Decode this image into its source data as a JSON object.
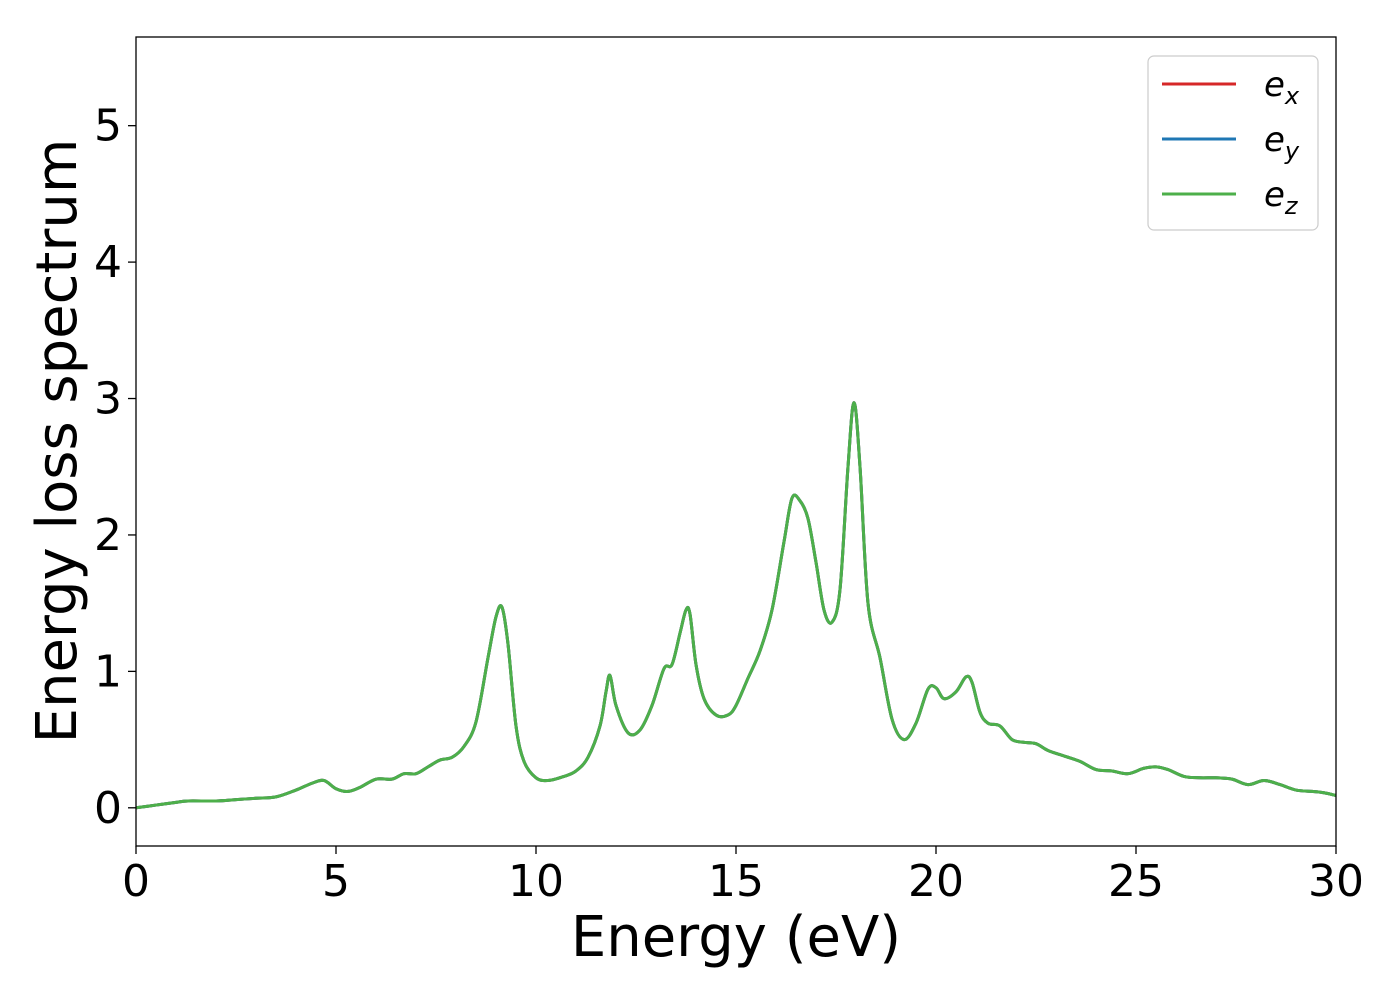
{
  "chart_data": {
    "type": "line",
    "xlabel": "Energy (eV)",
    "ylabel": "Energy loss spectrum",
    "xlim": [
      0,
      30
    ],
    "ylim": [
      -0.28,
      5.65
    ],
    "xticks": [
      0,
      5,
      10,
      15,
      20,
      25,
      30
    ],
    "yticks": [
      0,
      1,
      2,
      3,
      4,
      5
    ],
    "grid": false,
    "legend_position": "top-right",
    "legend": [
      {
        "base": "e",
        "sub": "x",
        "color": "#d62728"
      },
      {
        "base": "e",
        "sub": "y",
        "color": "#1f77b4"
      },
      {
        "base": "e",
        "sub": "z",
        "color": "#4daf4a"
      }
    ],
    "x": [
      0,
      0.5,
      1.0,
      1.3,
      2.0,
      2.5,
      3.0,
      3.5,
      4.0,
      4.4,
      4.7,
      5.0,
      5.3,
      5.6,
      6.0,
      6.4,
      6.7,
      7.0,
      7.3,
      7.6,
      7.9,
      8.2,
      8.5,
      8.8,
      9.0,
      9.15,
      9.3,
      9.5,
      9.7,
      10.0,
      10.3,
      10.7,
      11.0,
      11.3,
      11.6,
      11.75,
      11.85,
      12.0,
      12.3,
      12.6,
      12.9,
      13.2,
      13.4,
      13.6,
      13.75,
      13.85,
      14.0,
      14.2,
      14.5,
      14.8,
      15.0,
      15.3,
      15.6,
      15.9,
      16.2,
      16.4,
      16.6,
      16.8,
      17.0,
      17.2,
      17.4,
      17.6,
      17.8,
      17.95,
      18.1,
      18.3,
      18.6,
      18.9,
      19.2,
      19.5,
      19.8,
      20.0,
      20.2,
      20.5,
      20.75,
      20.9,
      21.1,
      21.3,
      21.6,
      21.9,
      22.2,
      22.5,
      22.8,
      23.2,
      23.6,
      24.0,
      24.4,
      24.8,
      25.2,
      25.5,
      25.8,
      26.2,
      26.6,
      27.0,
      27.4,
      27.8,
      28.2,
      28.6,
      29.0,
      29.4,
      29.7,
      30.0
    ],
    "series": [
      {
        "name": "e_x",
        "color": "#d62728",
        "values": [
          0.0,
          0.02,
          0.04,
          0.05,
          0.05,
          0.06,
          0.07,
          0.08,
          0.13,
          0.18,
          0.2,
          0.14,
          0.12,
          0.15,
          0.21,
          0.21,
          0.25,
          0.25,
          0.3,
          0.35,
          0.37,
          0.45,
          0.63,
          1.1,
          1.4,
          1.47,
          1.2,
          0.6,
          0.34,
          0.22,
          0.2,
          0.23,
          0.27,
          0.37,
          0.6,
          0.85,
          0.97,
          0.75,
          0.55,
          0.57,
          0.75,
          1.02,
          1.05,
          1.28,
          1.45,
          1.42,
          1.05,
          0.8,
          0.68,
          0.68,
          0.75,
          0.95,
          1.15,
          1.45,
          1.95,
          2.27,
          2.25,
          2.12,
          1.8,
          1.45,
          1.36,
          1.6,
          2.5,
          2.97,
          2.5,
          1.5,
          1.1,
          0.65,
          0.5,
          0.62,
          0.87,
          0.88,
          0.8,
          0.85,
          0.96,
          0.92,
          0.7,
          0.62,
          0.6,
          0.5,
          0.48,
          0.47,
          0.42,
          0.38,
          0.34,
          0.28,
          0.27,
          0.25,
          0.29,
          0.3,
          0.28,
          0.23,
          0.22,
          0.22,
          0.21,
          0.17,
          0.2,
          0.17,
          0.13,
          0.12,
          0.11,
          0.09
        ]
      },
      {
        "name": "e_y",
        "color": "#1f77b4",
        "values": [
          0.0,
          0.02,
          0.04,
          0.05,
          0.05,
          0.06,
          0.07,
          0.08,
          0.13,
          0.18,
          0.2,
          0.14,
          0.12,
          0.15,
          0.21,
          0.21,
          0.25,
          0.25,
          0.3,
          0.35,
          0.37,
          0.45,
          0.63,
          1.1,
          1.4,
          1.47,
          1.2,
          0.6,
          0.34,
          0.22,
          0.2,
          0.23,
          0.27,
          0.37,
          0.6,
          0.85,
          0.97,
          0.75,
          0.55,
          0.57,
          0.75,
          1.02,
          1.05,
          1.28,
          1.45,
          1.42,
          1.05,
          0.8,
          0.68,
          0.68,
          0.75,
          0.95,
          1.15,
          1.45,
          1.95,
          2.27,
          2.25,
          2.12,
          1.8,
          1.45,
          1.36,
          1.6,
          2.5,
          2.97,
          2.5,
          1.5,
          1.1,
          0.65,
          0.5,
          0.62,
          0.87,
          0.88,
          0.8,
          0.85,
          0.96,
          0.92,
          0.7,
          0.62,
          0.6,
          0.5,
          0.48,
          0.47,
          0.42,
          0.38,
          0.34,
          0.28,
          0.27,
          0.25,
          0.29,
          0.3,
          0.28,
          0.23,
          0.22,
          0.22,
          0.21,
          0.17,
          0.2,
          0.17,
          0.13,
          0.12,
          0.11,
          0.09
        ]
      },
      {
        "name": "e_z",
        "color": "#4daf4a",
        "values": [
          0.0,
          0.02,
          0.04,
          0.05,
          0.05,
          0.06,
          0.07,
          0.08,
          0.13,
          0.18,
          0.2,
          0.14,
          0.12,
          0.15,
          0.21,
          0.21,
          0.25,
          0.25,
          0.3,
          0.35,
          0.37,
          0.45,
          0.63,
          1.1,
          1.4,
          1.47,
          1.2,
          0.6,
          0.34,
          0.22,
          0.2,
          0.23,
          0.27,
          0.37,
          0.6,
          0.85,
          0.97,
          0.75,
          0.55,
          0.57,
          0.75,
          1.02,
          1.05,
          1.28,
          1.45,
          1.42,
          1.05,
          0.8,
          0.68,
          0.68,
          0.75,
          0.95,
          1.15,
          1.45,
          1.95,
          2.27,
          2.25,
          2.12,
          1.8,
          1.45,
          1.36,
          1.6,
          2.5,
          2.97,
          2.5,
          1.5,
          1.1,
          0.65,
          0.5,
          0.62,
          0.87,
          0.88,
          0.8,
          0.85,
          0.96,
          0.92,
          0.7,
          0.62,
          0.6,
          0.5,
          0.48,
          0.47,
          0.42,
          0.38,
          0.34,
          0.28,
          0.27,
          0.25,
          0.29,
          0.3,
          0.28,
          0.23,
          0.22,
          0.22,
          0.21,
          0.17,
          0.2,
          0.17,
          0.13,
          0.12,
          0.11,
          0.09
        ]
      }
    ]
  }
}
